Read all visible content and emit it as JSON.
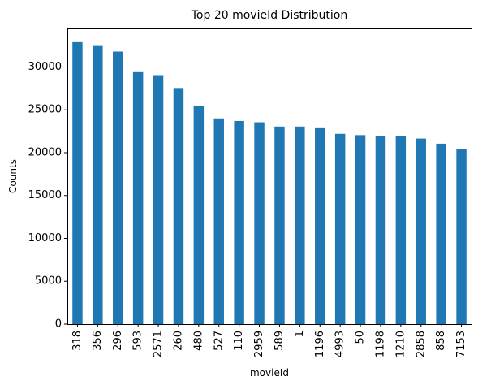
{
  "chart_data": {
    "type": "bar",
    "title": "Top 20 movieId Distribution",
    "xlabel": "movieId",
    "ylabel": "Counts",
    "categories": [
      "318",
      "356",
      "296",
      "593",
      "2571",
      "260",
      "480",
      "527",
      "110",
      "2959",
      "589",
      "1",
      "1196",
      "4993",
      "50",
      "1198",
      "1210",
      "2858",
      "858",
      "7153"
    ],
    "values": [
      32900,
      32450,
      31800,
      29400,
      29050,
      27550,
      25500,
      24000,
      23700,
      23550,
      23050,
      23050,
      22950,
      22200,
      22050,
      21950,
      21950,
      21650,
      21050,
      20450
    ],
    "ylim": [
      0,
      34500
    ],
    "yticks": [
      0,
      5000,
      10000,
      15000,
      20000,
      25000,
      30000
    ],
    "grid": false,
    "legend": "none",
    "bar_color": "#1f77b4"
  }
}
